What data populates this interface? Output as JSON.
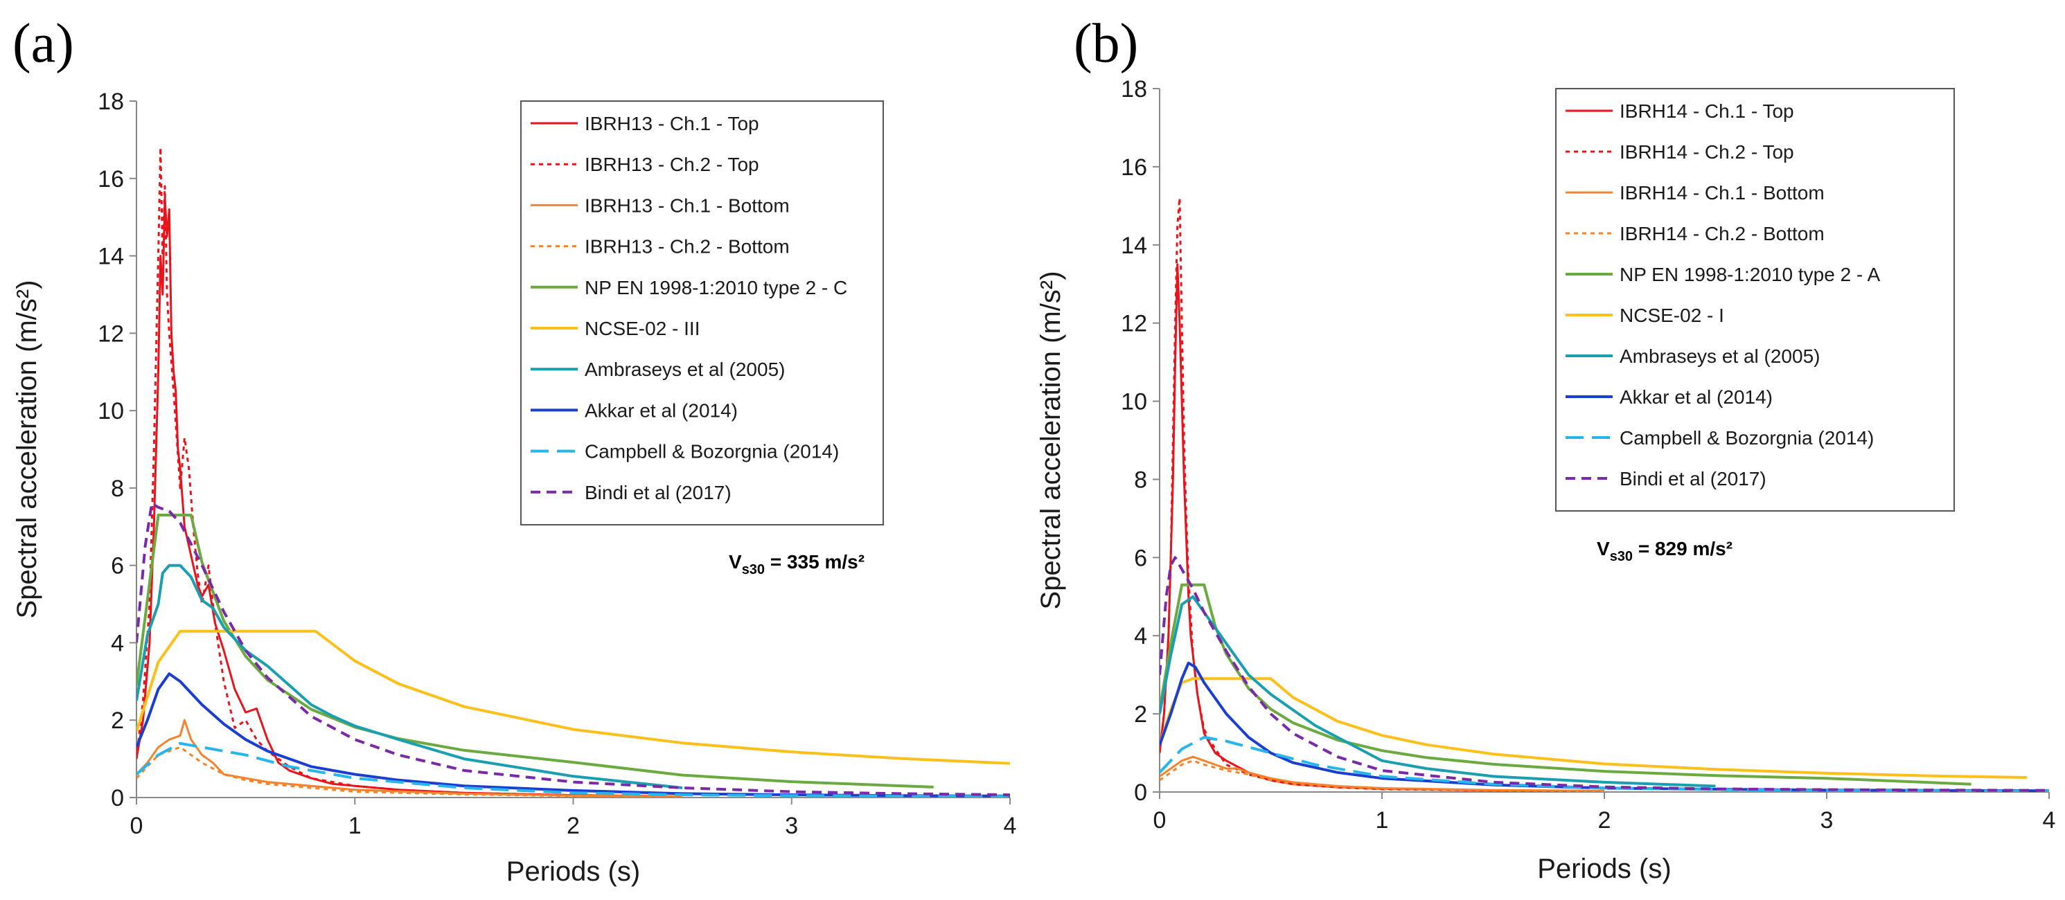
{
  "chart_data": [
    {
      "panel_label": "(a)",
      "type": "line",
      "xlabel": "Periods (s)",
      "ylabel": "Spectral acceleration (m/s²)",
      "xlim": [
        0,
        4
      ],
      "ylim": [
        0,
        18
      ],
      "xticks": [
        0,
        1,
        2,
        3,
        4
      ],
      "yticks": [
        0,
        2,
        4,
        6,
        8,
        10,
        12,
        14,
        16,
        18
      ],
      "annotation": "V_s30 = 335 m/s²",
      "annotation_main": "V",
      "annotation_sub": "s30",
      "annotation_rest": " = 335 m/s²",
      "series": [
        {
          "name": "IBRH13 - Ch.1 - Top",
          "color": "#e8141b",
          "dash": "solid",
          "width": 3,
          "x": [
            0,
            0.03,
            0.06,
            0.08,
            0.1,
            0.11,
            0.12,
            0.13,
            0.14,
            0.15,
            0.16,
            0.17,
            0.18,
            0.19,
            0.2,
            0.22,
            0.24,
            0.26,
            0.28,
            0.3,
            0.33,
            0.36,
            0.4,
            0.45,
            0.5,
            0.55,
            0.6,
            0.65,
            0.7,
            0.8,
            0.9,
            1,
            1.2,
            1.5,
            2,
            2.5
          ],
          "y": [
            1,
            2,
            4,
            7,
            11,
            14,
            13,
            15.5,
            14.5,
            15.2,
            12,
            11,
            10.5,
            9,
            8.5,
            7,
            6.5,
            6,
            5.5,
            5.2,
            5.5,
            4.5,
            3.8,
            2.8,
            2.2,
            2.3,
            1.5,
            0.9,
            0.7,
            0.5,
            0.35,
            0.3,
            0.2,
            0.12,
            0.06,
            0.03
          ]
        },
        {
          "name": "IBRH13 - Ch.2 - Top",
          "color": "#e8141b",
          "dash": "6,6",
          "width": 3,
          "x": [
            0,
            0.03,
            0.06,
            0.08,
            0.1,
            0.11,
            0.12,
            0.13,
            0.14,
            0.15,
            0.17,
            0.2,
            0.22,
            0.24,
            0.26,
            0.28,
            0.3,
            0.33,
            0.36,
            0.4,
            0.45,
            0.5,
            0.55,
            0.6,
            0.7,
            0.8,
            1,
            1.2,
            1.5,
            2,
            2.5
          ],
          "y": [
            1,
            2.5,
            5,
            9,
            14,
            16.8,
            14,
            15.8,
            13,
            12,
            10.5,
            8,
            9.3,
            8.5,
            7,
            5.8,
            5,
            6,
            4.5,
            3,
            1.8,
            2,
            1.5,
            1.2,
            0.8,
            0.5,
            0.3,
            0.2,
            0.12,
            0.06,
            0.03
          ]
        },
        {
          "name": "IBRH13 - Ch.1 - Bottom",
          "color": "#f4832b",
          "dash": "solid",
          "width": 3,
          "x": [
            0,
            0.05,
            0.1,
            0.15,
            0.2,
            0.22,
            0.25,
            0.3,
            0.35,
            0.4,
            0.5,
            0.6,
            0.8,
            1,
            1.5,
            2,
            2.5
          ],
          "y": [
            0.6,
            0.9,
            1.3,
            1.5,
            1.6,
            2,
            1.5,
            1.1,
            0.9,
            0.6,
            0.5,
            0.4,
            0.3,
            0.2,
            0.1,
            0.05,
            0.03
          ]
        },
        {
          "name": "IBRH13 - Ch.2 - Bottom",
          "color": "#f4832b",
          "dash": "6,6",
          "width": 3,
          "x": [
            0,
            0.05,
            0.1,
            0.15,
            0.2,
            0.25,
            0.3,
            0.4,
            0.5,
            0.6,
            0.8,
            1,
            1.5,
            2,
            2.5
          ],
          "y": [
            0.5,
            0.8,
            1.1,
            1.2,
            1.3,
            1.1,
            0.9,
            0.6,
            0.45,
            0.35,
            0.25,
            0.15,
            0.08,
            0.04,
            0.02
          ]
        },
        {
          "name": "NP EN 1998-1:2010 type 2 - C",
          "color": "#6aaa40",
          "dash": "solid",
          "width": 4,
          "x": [
            0,
            0.1,
            0.15,
            0.2,
            0.25,
            0.3,
            0.4,
            0.5,
            0.6,
            0.8,
            1,
            1.2,
            1.5,
            2,
            2.5,
            3,
            3.65
          ],
          "y": [
            2.9,
            7.3,
            7.3,
            7.3,
            7.3,
            6.08,
            4.56,
            3.65,
            3.04,
            2.28,
            1.82,
            1.52,
            1.22,
            0.91,
            0.58,
            0.41,
            0.27
          ]
        },
        {
          "name": "NCSE-02 - III",
          "color": "#fdbf1a",
          "dash": "solid",
          "width": 4,
          "x": [
            0,
            0.1,
            0.2,
            0.4,
            0.6,
            0.82,
            1,
            1.2,
            1.5,
            2,
            2.5,
            3,
            3.5,
            4
          ],
          "y": [
            1.7,
            3.5,
            4.3,
            4.3,
            4.3,
            4.3,
            3.53,
            2.94,
            2.35,
            1.76,
            1.41,
            1.18,
            1.01,
            0.88
          ]
        },
        {
          "name": "Ambraseys et al (2005)",
          "color": "#1a9fb0",
          "dash": "solid",
          "width": 4,
          "x": [
            0,
            0.05,
            0.1,
            0.12,
            0.15,
            0.2,
            0.25,
            0.3,
            0.35,
            0.4,
            0.5,
            0.6,
            0.7,
            0.8,
            0.9,
            1,
            1.2,
            1.5,
            2,
            2.5
          ],
          "y": [
            2.5,
            4.2,
            5,
            5.8,
            6,
            6,
            5.7,
            5.1,
            4.9,
            4.4,
            3.8,
            3.4,
            2.9,
            2.4,
            2.1,
            1.85,
            1.5,
            1,
            0.55,
            0.25
          ]
        },
        {
          "name": "Akkar et al (2014)",
          "color": "#1a3fd0",
          "dash": "solid",
          "width": 4,
          "x": [
            0,
            0.05,
            0.1,
            0.15,
            0.2,
            0.3,
            0.4,
            0.5,
            0.6,
            0.8,
            1,
            1.2,
            1.5,
            2,
            2.5,
            3,
            3.5,
            4
          ],
          "y": [
            1.3,
            2,
            2.8,
            3.2,
            3,
            2.4,
            1.9,
            1.5,
            1.2,
            0.8,
            0.6,
            0.45,
            0.3,
            0.18,
            0.1,
            0.07,
            0.05,
            0.04
          ]
        },
        {
          "name": "Campbell & Bozorgnia (2014)",
          "color": "#27b5ea",
          "dash": "26,12",
          "width": 4,
          "x": [
            0,
            0.1,
            0.2,
            0.3,
            0.5,
            0.7,
            1,
            1.5,
            2,
            2.5,
            3,
            3.5,
            4
          ],
          "y": [
            0.6,
            1.1,
            1.4,
            1.3,
            1.1,
            0.8,
            0.5,
            0.25,
            0.12,
            0.07,
            0.05,
            0.04,
            0.03
          ]
        },
        {
          "name": "Bindi et al (2017)",
          "color": "#7a2aa8",
          "dash": "14,9",
          "width": 4,
          "x": [
            0,
            0.04,
            0.07,
            0.1,
            0.15,
            0.2,
            0.3,
            0.4,
            0.5,
            0.6,
            0.8,
            1,
            1.2,
            1.5,
            2,
            2.5,
            3,
            3.5,
            4
          ],
          "y": [
            4,
            6.5,
            7.6,
            7.5,
            7.4,
            7.1,
            6,
            4.8,
            3.8,
            3.1,
            2.1,
            1.5,
            1.1,
            0.7,
            0.4,
            0.25,
            0.15,
            0.1,
            0.07
          ]
        }
      ]
    },
    {
      "panel_label": "(b)",
      "type": "line",
      "xlabel": "Periods (s)",
      "ylabel": "Spectral acceleration (m/s²)",
      "xlim": [
        0,
        4
      ],
      "ylim": [
        0,
        18
      ],
      "xticks": [
        0,
        1,
        2,
        3,
        4
      ],
      "yticks": [
        0,
        2,
        4,
        6,
        8,
        10,
        12,
        14,
        16,
        18
      ],
      "annotation": "V_s30 = 829 m/s²",
      "annotation_main": "V",
      "annotation_sub": "s30",
      "annotation_rest": " = 829 m/s²",
      "series": [
        {
          "name": "IBRH14 - Ch.1 - Top",
          "color": "#e8141b",
          "dash": "solid",
          "width": 3,
          "x": [
            0,
            0.02,
            0.04,
            0.05,
            0.06,
            0.07,
            0.08,
            0.09,
            0.1,
            0.11,
            0.12,
            0.13,
            0.14,
            0.15,
            0.17,
            0.2,
            0.25,
            0.3,
            0.4,
            0.5,
            0.6,
            0.8,
            1,
            1.5,
            2
          ],
          "y": [
            1,
            2,
            4,
            6,
            8,
            11,
            13.5,
            12,
            10,
            8,
            6.5,
            5,
            4,
            3.5,
            2.5,
            1.5,
            1,
            0.8,
            0.5,
            0.3,
            0.2,
            0.12,
            0.08,
            0.04,
            0.02
          ]
        },
        {
          "name": "IBRH14 - Ch.2 - Top",
          "color": "#e8141b",
          "dash": "6,6",
          "width": 3,
          "x": [
            0,
            0.02,
            0.04,
            0.05,
            0.06,
            0.07,
            0.08,
            0.09,
            0.1,
            0.11,
            0.12,
            0.13,
            0.14,
            0.15,
            0.17,
            0.2,
            0.25,
            0.3,
            0.4,
            0.5,
            0.6,
            0.8,
            1,
            1.5,
            2
          ],
          "y": [
            1,
            2,
            4,
            6,
            9,
            12,
            14.5,
            15.2,
            12,
            9,
            7,
            5.5,
            4.5,
            3.5,
            2.5,
            1.6,
            1.1,
            0.7,
            0.45,
            0.3,
            0.2,
            0.12,
            0.07,
            0.04,
            0.02
          ]
        },
        {
          "name": "IBRH14 - Ch.1 - Bottom",
          "color": "#f4832b",
          "dash": "solid",
          "width": 3,
          "x": [
            0,
            0.05,
            0.1,
            0.15,
            0.2,
            0.25,
            0.3,
            0.35,
            0.4,
            0.5,
            0.6,
            0.8,
            1,
            1.5,
            2
          ],
          "y": [
            0.4,
            0.6,
            0.8,
            0.9,
            0.8,
            0.7,
            0.6,
            0.6,
            0.5,
            0.35,
            0.25,
            0.15,
            0.1,
            0.05,
            0.03
          ]
        },
        {
          "name": "IBRH14 - Ch.2 - Bottom",
          "color": "#f4832b",
          "dash": "6,6",
          "width": 3,
          "x": [
            0,
            0.05,
            0.1,
            0.15,
            0.2,
            0.3,
            0.4,
            0.5,
            0.6,
            0.8,
            1,
            1.5,
            2
          ],
          "y": [
            0.3,
            0.5,
            0.7,
            0.8,
            0.7,
            0.55,
            0.45,
            0.3,
            0.2,
            0.12,
            0.08,
            0.04,
            0.02
          ]
        },
        {
          "name": "NP EN 1998-1:2010 type 2 - A",
          "color": "#6aaa40",
          "dash": "solid",
          "width": 4,
          "x": [
            0,
            0.05,
            0.1,
            0.15,
            0.2,
            0.25,
            0.3,
            0.4,
            0.5,
            0.6,
            0.8,
            1,
            1.2,
            1.5,
            2,
            2.5,
            3,
            3.65
          ],
          "y": [
            2.1,
            3.8,
            5.3,
            5.3,
            5.3,
            4.24,
            3.53,
            2.65,
            2.12,
            1.77,
            1.33,
            1.06,
            0.88,
            0.71,
            0.53,
            0.42,
            0.35,
            0.2
          ]
        },
        {
          "name": "NCSE-02 - I",
          "color": "#fdbf1a",
          "dash": "solid",
          "width": 4,
          "x": [
            0,
            0.05,
            0.1,
            0.15,
            0.3,
            0.5,
            0.6,
            0.8,
            1,
            1.2,
            1.5,
            2,
            2.5,
            3,
            3.5,
            3.9
          ],
          "y": [
            1.2,
            2.1,
            2.8,
            2.9,
            2.9,
            2.9,
            2.42,
            1.81,
            1.45,
            1.21,
            0.97,
            0.72,
            0.58,
            0.48,
            0.41,
            0.37
          ]
        },
        {
          "name": "Ambraseys et al (2005)",
          "color": "#1a9fb0",
          "dash": "solid",
          "width": 4,
          "x": [
            0,
            0.05,
            0.1,
            0.15,
            0.2,
            0.25,
            0.3,
            0.4,
            0.5,
            0.6,
            0.7,
            0.8,
            0.9,
            1,
            1.2,
            1.5,
            2,
            2.5
          ],
          "y": [
            2,
            3.5,
            4.8,
            5,
            4.6,
            4.2,
            3.8,
            3,
            2.5,
            2.1,
            1.7,
            1.4,
            1.1,
            0.8,
            0.6,
            0.4,
            0.25,
            0.15
          ]
        },
        {
          "name": "Akkar et al (2014)",
          "color": "#1a3fd0",
          "dash": "solid",
          "width": 4,
          "x": [
            0,
            0.05,
            0.1,
            0.13,
            0.16,
            0.2,
            0.3,
            0.4,
            0.5,
            0.6,
            0.8,
            1,
            1.5,
            2,
            2.5,
            3,
            3.5,
            4
          ],
          "y": [
            1.2,
            2,
            2.9,
            3.3,
            3.2,
            2.8,
            2,
            1.4,
            1,
            0.75,
            0.5,
            0.35,
            0.18,
            0.1,
            0.07,
            0.05,
            0.04,
            0.03
          ]
        },
        {
          "name": "Campbell & Bozorgnia (2014)",
          "color": "#27b5ea",
          "dash": "26,12",
          "width": 4,
          "x": [
            0,
            0.1,
            0.2,
            0.3,
            0.5,
            0.7,
            1,
            1.5,
            2,
            2.5,
            3,
            3.5,
            4
          ],
          "y": [
            0.5,
            1.1,
            1.4,
            1.3,
            1,
            0.7,
            0.4,
            0.2,
            0.1,
            0.06,
            0.04,
            0.03,
            0.02
          ]
        },
        {
          "name": "Bindi et al (2017)",
          "color": "#7a2aa8",
          "dash": "14,9",
          "width": 4,
          "x": [
            0,
            0.03,
            0.05,
            0.07,
            0.1,
            0.15,
            0.2,
            0.3,
            0.4,
            0.5,
            0.6,
            0.8,
            1,
            1.5,
            2,
            2.5,
            3,
            3.5,
            4
          ],
          "y": [
            3,
            5,
            5.8,
            6,
            5.7,
            5.2,
            4.6,
            3.6,
            2.7,
            2,
            1.5,
            0.9,
            0.55,
            0.25,
            0.13,
            0.08,
            0.06,
            0.05,
            0.04
          ]
        }
      ]
    }
  ]
}
